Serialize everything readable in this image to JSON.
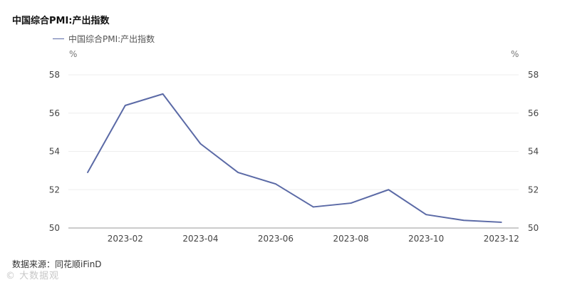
{
  "title": "中国综合PMI:产出指数",
  "legend_label": "中国综合PMI:产出指数",
  "unit_left": "%",
  "unit_right": "%",
  "source": "数据来源：同花顺iFinD",
  "watermark": "© 大数据观",
  "colors": {
    "line": "#5b6aa6",
    "grid": "#eeeeee",
    "axis": "#999999"
  },
  "chart_data": {
    "type": "line",
    "title": "中国综合PMI:产出指数",
    "xlabel": "",
    "ylabel": "%",
    "ylim": [
      50,
      58
    ],
    "yticks": [
      "50",
      "52",
      "54",
      "56",
      "58"
    ],
    "x_tick_labels": [
      "2023-02",
      "2023-04",
      "2023-06",
      "2023-08",
      "2023-10",
      "2023-12"
    ],
    "x": [
      "2023-01",
      "2023-02",
      "2023-03",
      "2023-04",
      "2023-05",
      "2023-06",
      "2023-07",
      "2023-08",
      "2023-09",
      "2023-10",
      "2023-11",
      "2023-12"
    ],
    "series": [
      {
        "name": "中国综合PMI:产出指数",
        "values": [
          52.9,
          56.4,
          57.0,
          54.4,
          52.9,
          52.3,
          51.1,
          51.3,
          52.0,
          50.7,
          50.4,
          50.3
        ]
      }
    ],
    "grid": true,
    "legend_position": "top-left",
    "dual_y_axis": true
  }
}
